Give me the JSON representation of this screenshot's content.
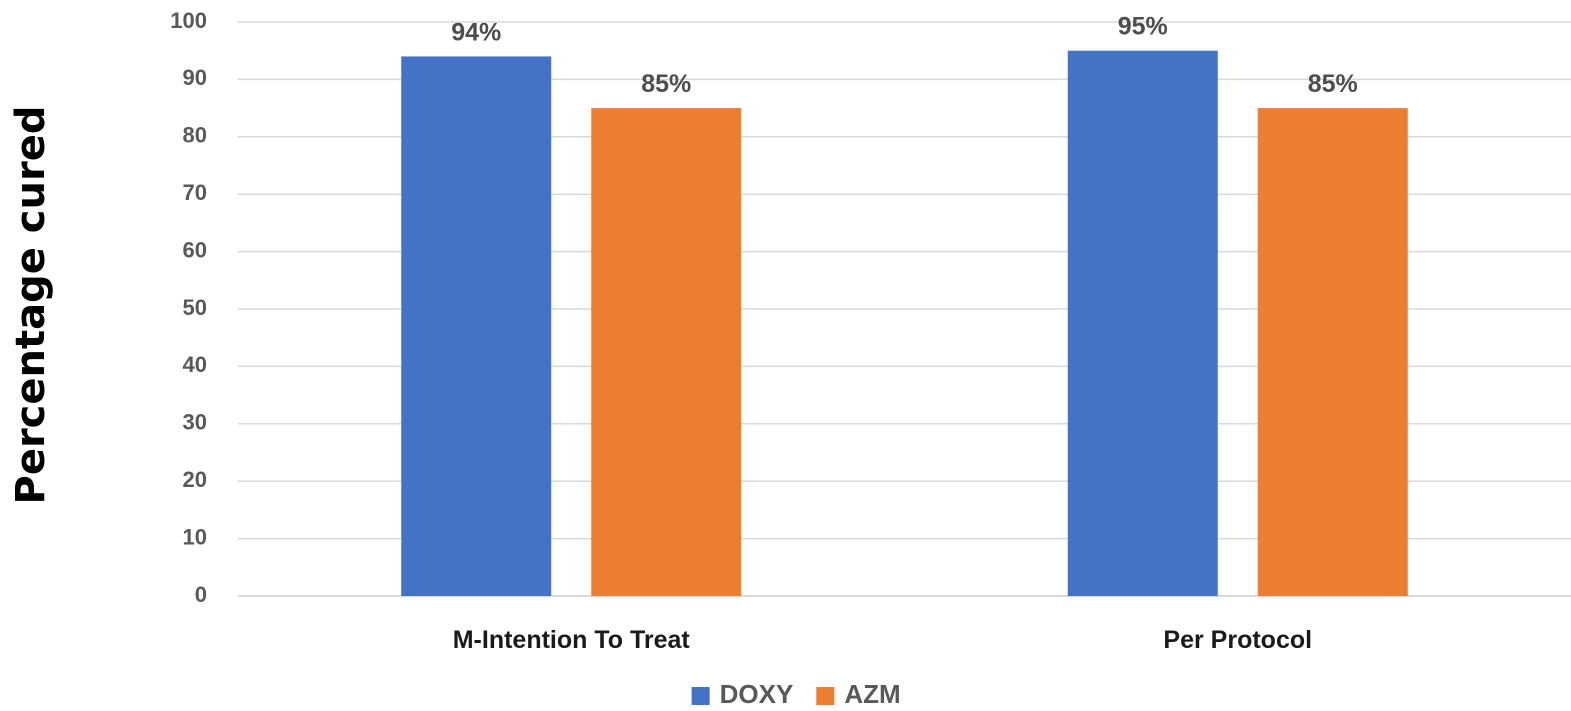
{
  "chart_data": {
    "type": "bar",
    "title": "",
    "xlabel": "",
    "ylabel": "Percentage cured",
    "ylim": [
      0,
      100
    ],
    "yticks": [
      0,
      10,
      20,
      30,
      40,
      50,
      60,
      70,
      80,
      90,
      100
    ],
    "categories": [
      "M-Intention To Treat",
      "Per Protocol"
    ],
    "series": [
      {
        "name": "DOXY",
        "color": "#4472c4",
        "values": [
          94,
          95
        ],
        "labels": [
          "94%",
          "95%"
        ]
      },
      {
        "name": "AZM",
        "color": "#ed7d31",
        "values": [
          85,
          85
        ],
        "labels": [
          "85%",
          "85%"
        ]
      }
    ],
    "grid": true,
    "legend": "bottom"
  }
}
